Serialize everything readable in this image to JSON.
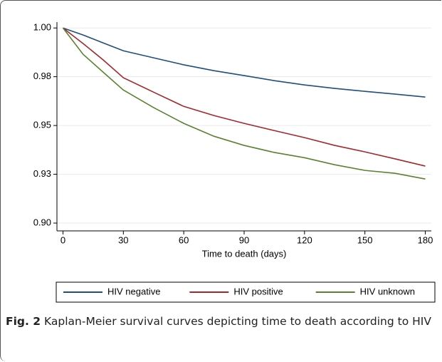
{
  "chart_data": {
    "type": "line",
    "x_label": "Time to death (days)",
    "x": [
      0,
      10,
      20,
      30,
      45,
      60,
      75,
      90,
      105,
      120,
      135,
      150,
      165,
      180
    ],
    "series": [
      {
        "name": "HIV negative",
        "color": "#1f4e7f",
        "values": [
          1,
          0.9964,
          0.9923,
          0.9883,
          0.9847,
          0.9811,
          0.9781,
          0.9756,
          0.973,
          0.9708,
          0.969,
          0.9675,
          0.9661,
          0.9646
        ]
      },
      {
        "name": "HIV positive",
        "color": "#a3282e",
        "values": [
          1,
          0.992,
          0.9836,
          0.9745,
          0.9671,
          0.9598,
          0.9551,
          0.9511,
          0.9474,
          0.9438,
          0.9398,
          0.9365,
          0.9329,
          0.9292
        ]
      },
      {
        "name": "HIV unknown",
        "color": "#5b8230",
        "values": [
          1,
          0.9865,
          0.9773,
          0.9682,
          0.9592,
          0.9511,
          0.9445,
          0.9398,
          0.9362,
          0.9335,
          0.9299,
          0.927,
          0.9255,
          0.9226
        ]
      }
    ],
    "xlim": [
      -3,
      183
    ],
    "xticks": [
      0,
      30,
      60,
      90,
      120,
      150,
      180
    ],
    "ylim": [
      0.896,
      1.003
    ],
    "yticks": [
      {
        "value": 0.9,
        "label": "0.90"
      },
      {
        "value": 0.925,
        "label": "0.93"
      },
      {
        "value": 0.95,
        "label": "0.95"
      },
      {
        "value": 0.975,
        "label": "0.98"
      },
      {
        "value": 1,
        "label": "1.00"
      }
    ],
    "grid": true,
    "legend": "bottom"
  },
  "caption": {
    "label": "Fig. 2",
    "text": "Kaplan-Meier survival curves depicting time to death according to HIV"
  }
}
